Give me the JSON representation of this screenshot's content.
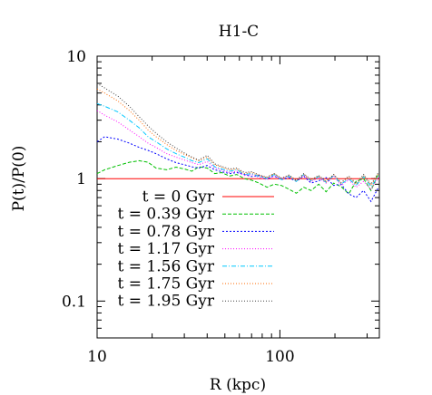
{
  "chart_data": {
    "type": "line",
    "title": "H1-C",
    "xlabel": "R (kpc)",
    "ylabel": "P(t)/P(0)",
    "x_scale": "log",
    "y_scale": "log",
    "xlim": [
      10,
      350
    ],
    "ylim": [
      0.05,
      10
    ],
    "x_ticks": [
      {
        "value": 10,
        "label": "10"
      },
      {
        "value": 100,
        "label": "100"
      }
    ],
    "y_ticks": [
      {
        "value": 10,
        "label": "10"
      },
      {
        "value": 1,
        "label": "1"
      },
      {
        "value": 0.1,
        "label": "0.1"
      }
    ],
    "grid": false,
    "legend_position": "lower-left",
    "series": [
      {
        "name": "t = 0 Gyr",
        "color": "#ff0000",
        "dash": "",
        "x": [
          10,
          15,
          20,
          30,
          50,
          80,
          120,
          180,
          250,
          350
        ],
        "y": [
          1,
          1,
          1,
          1,
          1,
          1,
          1,
          1,
          1,
          1
        ]
      },
      {
        "name": "t = 0.39 Gyr",
        "color": "#00c000",
        "dash": "4,2",
        "x": [
          10,
          11,
          13,
          15,
          17,
          19,
          21,
          24,
          27,
          30,
          33,
          36,
          40,
          44,
          48,
          53,
          58,
          64,
          70,
          77,
          85,
          93,
          102,
          112,
          123,
          135,
          148,
          163,
          179,
          197,
          216,
          238,
          261,
          287,
          315,
          346
        ],
        "y": [
          1.1,
          1.18,
          1.28,
          1.36,
          1.4,
          1.36,
          1.22,
          1.18,
          1.24,
          1.2,
          1.15,
          1.25,
          1.22,
          1.1,
          1.12,
          1.05,
          1.08,
          1.0,
          0.97,
          0.92,
          0.85,
          0.9,
          0.88,
          0.82,
          0.76,
          0.85,
          0.8,
          0.9,
          0.78,
          0.92,
          0.86,
          0.75,
          0.95,
          1.0,
          0.8,
          1.1
        ]
      },
      {
        "name": "t = 0.78 Gyr",
        "color": "#0000ff",
        "dash": "2,2",
        "x": [
          10,
          11,
          13,
          15,
          17,
          19,
          21,
          24,
          27,
          30,
          33,
          36,
          40,
          44,
          48,
          53,
          58,
          64,
          70,
          77,
          85,
          93,
          102,
          112,
          123,
          135,
          148,
          163,
          179,
          197,
          216,
          238,
          261,
          287,
          315,
          346
        ],
        "y": [
          2.0,
          2.2,
          2.1,
          1.95,
          1.8,
          1.7,
          1.6,
          1.45,
          1.35,
          1.3,
          1.25,
          1.22,
          1.28,
          1.18,
          1.14,
          1.1,
          1.12,
          1.08,
          1.04,
          1.06,
          1.0,
          1.05,
          0.98,
          1.02,
          0.95,
          1.05,
          0.92,
          0.96,
          1.02,
          0.88,
          0.9,
          0.75,
          0.7,
          0.8,
          0.65,
          0.85
        ]
      },
      {
        "name": "t = 1.17 Gyr",
        "color": "#ff00ff",
        "dash": "1,2",
        "x": [
          10,
          11,
          13,
          15,
          17,
          19,
          21,
          24,
          27,
          30,
          33,
          36,
          40,
          44,
          48,
          53,
          58,
          64,
          70,
          77,
          85,
          93,
          102,
          112,
          123,
          135,
          148,
          163,
          179,
          197,
          216,
          238,
          261,
          287,
          315,
          346
        ],
        "y": [
          3.6,
          3.3,
          2.9,
          2.5,
          2.2,
          1.95,
          1.8,
          1.6,
          1.5,
          1.42,
          1.35,
          1.3,
          1.38,
          1.22,
          1.18,
          1.12,
          1.15,
          1.06,
          1.08,
          1.02,
          0.98,
          1.05,
          1.0,
          1.04,
          0.96,
          1.06,
          0.94,
          1.02,
          0.92,
          1.05,
          0.88,
          0.98,
          0.85,
          0.95,
          0.82,
          1.02
        ]
      },
      {
        "name": "t = 1.56 Gyr",
        "color": "#00c8ff",
        "dash": "5,2,1,2",
        "x": [
          10,
          11,
          13,
          15,
          17,
          19,
          21,
          24,
          27,
          30,
          33,
          36,
          40,
          44,
          48,
          53,
          58,
          64,
          70,
          77,
          85,
          93,
          102,
          112,
          123,
          135,
          148,
          163,
          179,
          197,
          216,
          238,
          261,
          287,
          315,
          346
        ],
        "y": [
          4.1,
          3.9,
          3.5,
          3.0,
          2.6,
          2.2,
          2.0,
          1.75,
          1.6,
          1.5,
          1.4,
          1.35,
          1.45,
          1.25,
          1.2,
          1.15,
          1.18,
          1.08,
          1.1,
          1.04,
          1.0,
          1.08,
          0.98,
          1.05,
          0.95,
          1.08,
          0.96,
          1.04,
          0.93,
          1.06,
          0.9,
          1.0,
          0.88,
          1.04,
          0.86,
          1.05
        ]
      },
      {
        "name": "t = 1.75 Gyr",
        "color": "#ff6a00",
        "dash": "1,2",
        "x": [
          10,
          11,
          13,
          15,
          17,
          19,
          21,
          24,
          27,
          30,
          33,
          36,
          40,
          44,
          48,
          53,
          58,
          64,
          70,
          77,
          85,
          93,
          102,
          112,
          123,
          135,
          148,
          163,
          179,
          197,
          216,
          238,
          261,
          287,
          315,
          346
        ],
        "y": [
          5.4,
          5.0,
          4.3,
          3.6,
          3.0,
          2.5,
          2.2,
          1.9,
          1.7,
          1.58,
          1.48,
          1.4,
          1.5,
          1.3,
          1.24,
          1.18,
          1.2,
          1.1,
          1.12,
          1.06,
          1.02,
          1.1,
          1.0,
          1.06,
          0.96,
          1.08,
          0.97,
          1.05,
          0.94,
          1.08,
          0.92,
          1.04,
          0.9,
          1.06,
          0.88,
          1.1
        ]
      },
      {
        "name": "t = 1.95 Gyr",
        "color": "#404040",
        "dash": "1,2",
        "x": [
          10,
          11,
          13,
          15,
          17,
          19,
          21,
          24,
          27,
          30,
          33,
          36,
          40,
          44,
          48,
          53,
          58,
          64,
          70,
          77,
          85,
          93,
          102,
          112,
          123,
          135,
          148,
          163,
          179,
          197,
          216,
          238,
          261,
          287,
          315,
          346
        ],
        "y": [
          6.0,
          5.5,
          4.7,
          3.9,
          3.2,
          2.7,
          2.35,
          2.0,
          1.78,
          1.62,
          1.5,
          1.42,
          1.55,
          1.32,
          1.26,
          1.2,
          1.22,
          1.12,
          1.14,
          1.07,
          1.03,
          1.1,
          1.01,
          1.07,
          0.97,
          1.1,
          0.98,
          1.06,
          0.95,
          1.08,
          0.93,
          1.05,
          0.91,
          1.08,
          0.9,
          1.12
        ]
      }
    ]
  }
}
